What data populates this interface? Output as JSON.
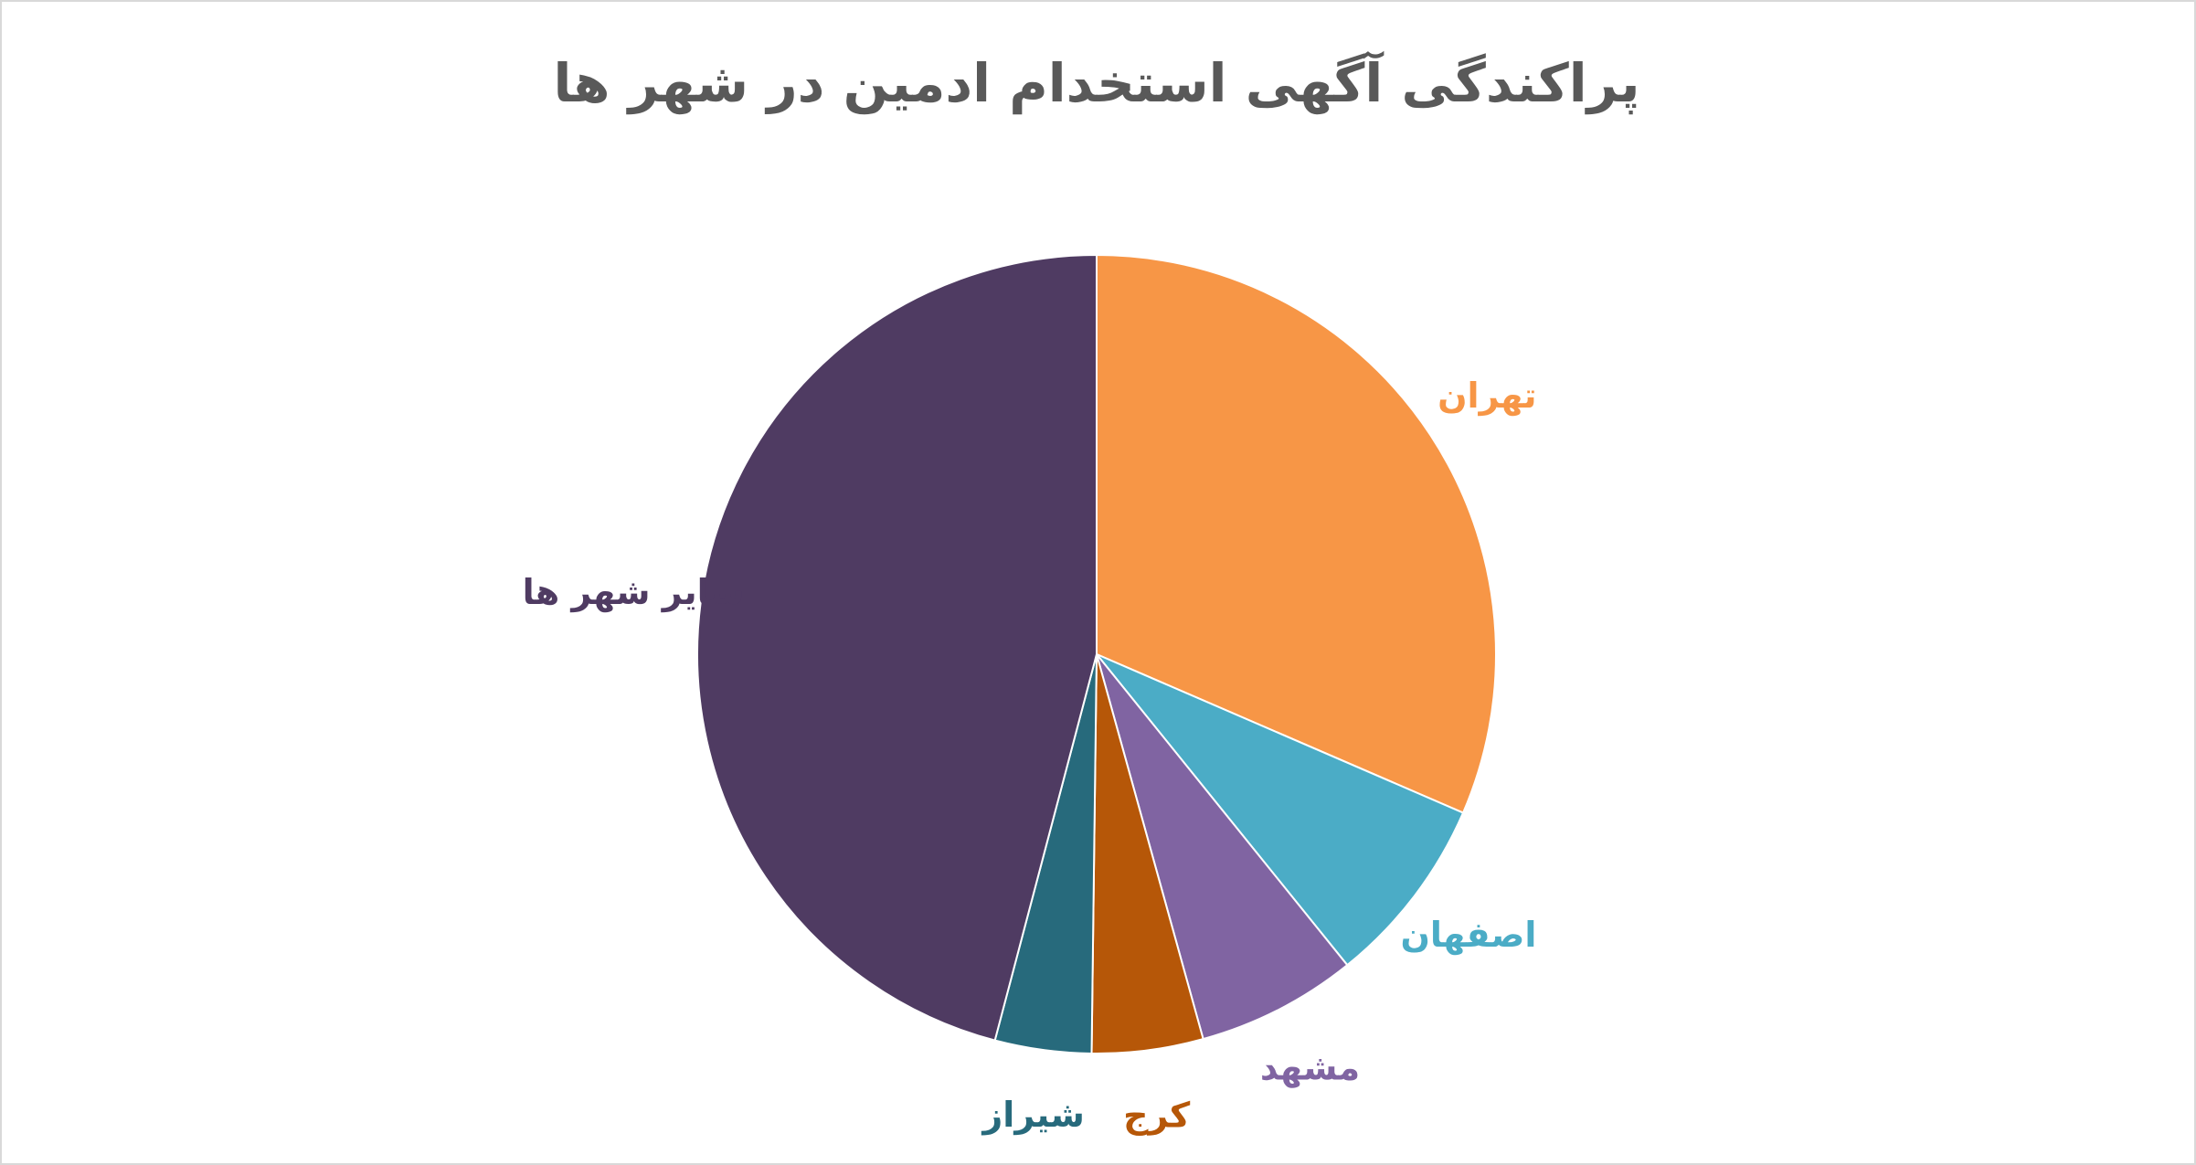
{
  "chart_data": {
    "type": "pie",
    "title": "پراکندگی آگهی استخدام ادمین در شهر ها",
    "categories": [
      "تهران",
      "اصفهان",
      "مشهد",
      "کرج",
      "شیراز",
      "سایر شهر ها"
    ],
    "values": [
      31.5,
      7.7,
      6.5,
      4.5,
      3.9,
      45.9
    ],
    "colors": [
      "#f79646",
      "#4bacc6",
      "#8064a2",
      "#b65708",
      "#276a7c",
      "#4f3b62"
    ]
  }
}
